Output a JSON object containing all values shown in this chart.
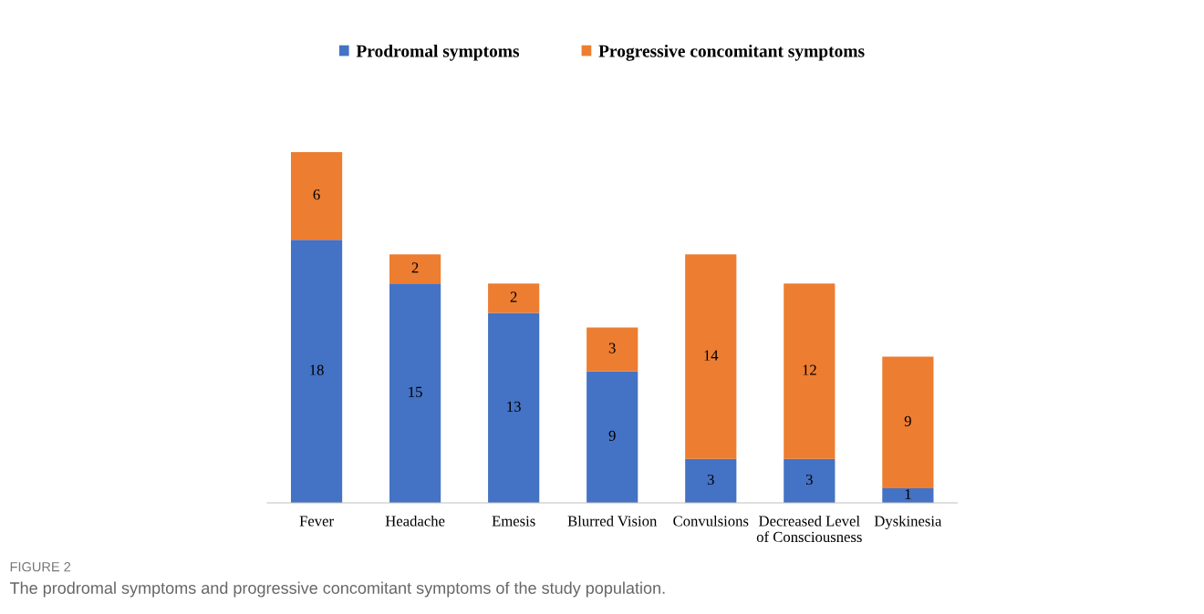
{
  "chart_data": {
    "type": "bar",
    "stacked": true,
    "data_labels": true,
    "legend": "top",
    "categories": [
      "Fever",
      "Headache",
      "Emesis",
      "Blurred Vision",
      "Convulsions",
      "Decreased Level of Consciousness",
      "Dyskinesia"
    ],
    "series": [
      {
        "name": "Prodromal symptoms",
        "color": "#4472c4",
        "values": [
          18,
          15,
          13,
          9,
          3,
          3,
          1
        ]
      },
      {
        "name": "Progressive concomitant symptoms",
        "color": "#ed7d31",
        "values": [
          6,
          2,
          2,
          3,
          14,
          12,
          9
        ]
      }
    ],
    "annotations": [
      "FIGURE 2",
      "The prodromal symptoms and progressive concomitant symptoms of the study population."
    ]
  }
}
